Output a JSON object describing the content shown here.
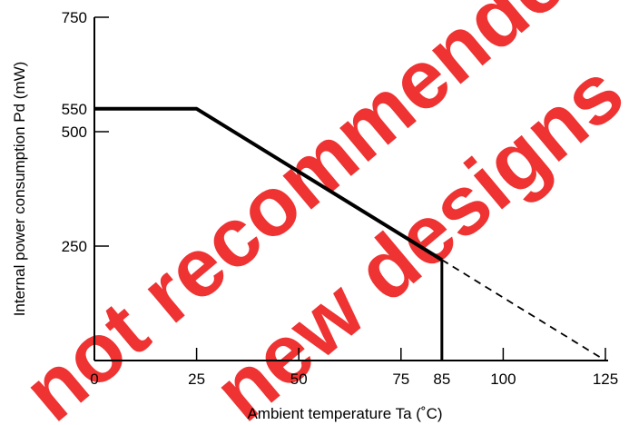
{
  "chart_data": {
    "type": "line",
    "xlabel": "Ambient temperature  Ta   (˚C)",
    "ylabel": "Internal power consumption   Pd   (mW)",
    "xlim": [
      0,
      125
    ],
    "ylim": [
      0,
      750
    ],
    "x_ticks": [
      0,
      25,
      50,
      75,
      85,
      100,
      125
    ],
    "y_ticks": [
      250,
      500,
      550,
      750
    ],
    "grid": false,
    "series": [
      {
        "style": "solid",
        "x": [
          0,
          25,
          85
        ],
        "y": [
          550,
          550,
          220
        ]
      },
      {
        "style": "dashed",
        "x": [
          85,
          125
        ],
        "y": [
          220,
          0
        ]
      }
    ],
    "drop_line": {
      "x": 85,
      "y_from": 0,
      "y_to": 220
    }
  },
  "watermark": {
    "lines": [
      "not recommended for",
      "new designs"
    ],
    "color": "#ee1c1c"
  }
}
